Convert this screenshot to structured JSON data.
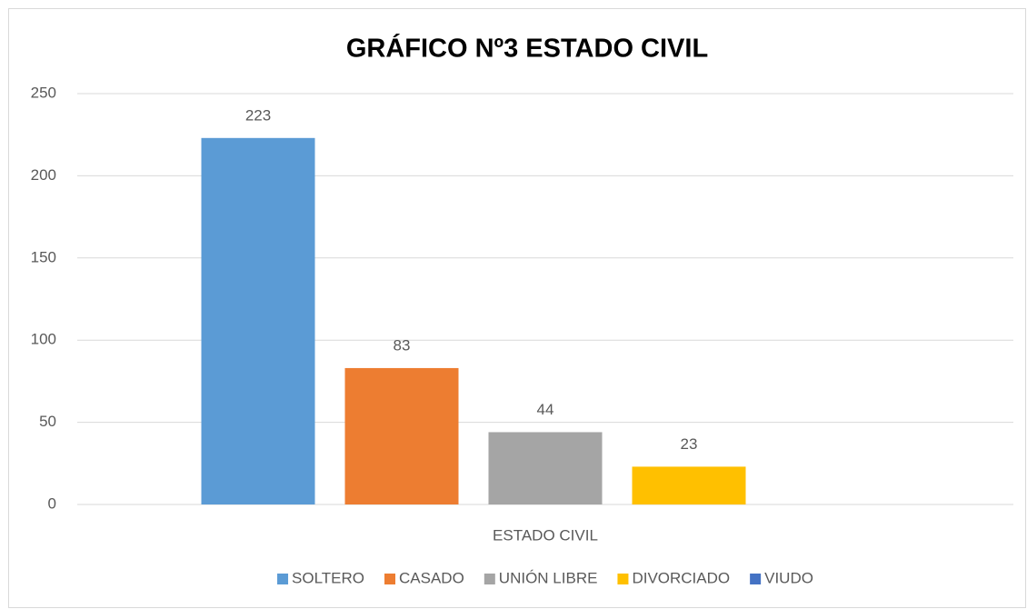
{
  "chart_data": {
    "type": "bar",
    "title": "GRÁFICO Nº3 ESTADO CIVIL",
    "categories": [
      "ESTADO CIVIL"
    ],
    "series": [
      {
        "name": "SOLTERO",
        "color": "#5b9bd5",
        "values": [
          223
        ]
      },
      {
        "name": "CASADO",
        "color": "#ed7d31",
        "values": [
          83
        ]
      },
      {
        "name": "UNIÓN LIBRE",
        "color": "#a5a5a5",
        "values": [
          44
        ]
      },
      {
        "name": "DIVORCIADO",
        "color": "#ffc000",
        "values": [
          23
        ]
      },
      {
        "name": "VIUDO",
        "color": "#4472c4",
        "values": [
          null
        ]
      }
    ],
    "ylim": [
      0,
      250
    ],
    "yticks": [
      0,
      50,
      100,
      150,
      200,
      250
    ],
    "grid": true,
    "legend": "bottom"
  }
}
